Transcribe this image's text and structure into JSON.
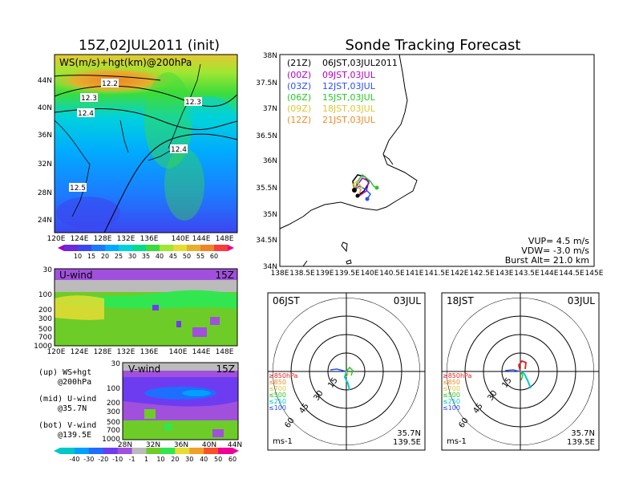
{
  "left_panel": {
    "title": "15Z,02JUL2011 (init)",
    "map_label": "WS(m/s)+hgt(km)@200hPa",
    "lat_ticks": [
      "44N",
      "40N",
      "36N",
      "32N",
      "28N",
      "24N"
    ],
    "lon_ticks": [
      "120E",
      "124E",
      "128E",
      "132E",
      "136E",
      "140E",
      "144E",
      "148E"
    ],
    "contour_labels": [
      "12.2",
      "12.3",
      "12.4",
      "12.3",
      "12.4",
      "12.5"
    ],
    "ws_colorbar": [
      "10",
      "15",
      "20",
      "25",
      "30",
      "35",
      "40",
      "45",
      "50",
      "55",
      "60"
    ],
    "ws_colors": [
      "#a000c8",
      "#6e28dc",
      "#3c46f0",
      "#1e78ff",
      "#00aaff",
      "#00d2dc",
      "#00dc8c",
      "#3cdc3c",
      "#a0e632",
      "#e6dc32",
      "#e6af2d",
      "#f08228",
      "#fa3c3c",
      "#f00082"
    ]
  },
  "u_panel": {
    "label": "U-wind",
    "time": "15Z",
    "p_ticks": [
      "30",
      "100",
      "200",
      "300",
      "500",
      "700",
      "1000"
    ],
    "lon_ticks": [
      "120E",
      "124E",
      "128E",
      "132E",
      "136E",
      "140E",
      "144E",
      "148E"
    ]
  },
  "v_panel": {
    "label": "V-wind",
    "time": "15Z",
    "p_ticks": [
      "30",
      "100",
      "200",
      "300",
      "500",
      "700",
      "1000"
    ],
    "lat_ticks": [
      "28N",
      "32N",
      "36N",
      "40N",
      "44N"
    ]
  },
  "legend_notes": [
    {
      "line1": "(up) WS+hgt",
      "line2": "@200hPa"
    },
    {
      "line1": "(mid) U-wind",
      "line2": "@35.7N"
    },
    {
      "line1": "(bot) V-wind",
      "line2": "@139.5E"
    }
  ],
  "uv_colorbar": {
    "labels": [
      "-40",
      "-30",
      "-20",
      "-10",
      "-1",
      "1",
      "10",
      "20",
      "30",
      "40",
      "50",
      "60"
    ],
    "colors": [
      "#00c8c8",
      "#00a0ff",
      "#1e6eff",
      "#6e3cf0",
      "#a050dc",
      "#bbbbbb",
      "#6ecc28",
      "#32e650",
      "#e6dc32",
      "#f0a028",
      "#fa5028",
      "#f00096"
    ]
  },
  "tracking": {
    "title": "Sonde Tracking Forecast",
    "launches": [
      {
        "utc": "(21Z)",
        "jst": "06JST,03JUL2011",
        "color": "#000000"
      },
      {
        "utc": "(00Z)",
        "jst": "09JST,03JUL",
        "color": "#b400c8"
      },
      {
        "utc": "(03Z)",
        "jst": "12JST,03JUL",
        "color": "#2850ff"
      },
      {
        "utc": "(06Z)",
        "jst": "15JST,03JUL",
        "color": "#28c828"
      },
      {
        "utc": "(09Z)",
        "jst": "18JST,03JUL",
        "color": "#dcc832"
      },
      {
        "utc": "(12Z)",
        "jst": "21JST,03JUL",
        "color": "#f08c28"
      }
    ],
    "lat_ticks": [
      "38N",
      "37.5N",
      "37N",
      "36.5N",
      "36N",
      "35.5N",
      "35N",
      "34.5N",
      "34N"
    ],
    "lon_ticks": [
      "138E",
      "138.5E",
      "139E",
      "139.5E",
      "140E",
      "140.5E",
      "141E",
      "141.5E",
      "142E",
      "142.5E",
      "143E",
      "143.5E",
      "144E",
      "144.5E",
      "145E"
    ],
    "vup": "VUP= 4.5 m/s",
    "vdw": "VDW= -3.0 m/s",
    "burst": "Burst Alt= 21.0 km"
  },
  "polar_left": {
    "time": "06JST",
    "date": "03JUL",
    "ring_labels": [
      "15",
      "30",
      "45",
      "60"
    ],
    "unit": "ms-1",
    "lat": "35.7N",
    "lon": "139.5E"
  },
  "polar_right": {
    "time": "18JST",
    "date": "03JUL",
    "ring_labels": [
      "15",
      "30",
      "45",
      "60"
    ],
    "unit": "ms-1",
    "lat": "35.7N",
    "lon": "139.5E"
  },
  "pressure_legend": [
    {
      "label": "≥850hPa",
      "color": "#e61e1e"
    },
    {
      "label": "≤850",
      "color": "#f08c28"
    },
    {
      "label": "≤700",
      "color": "#dcc832"
    },
    {
      "label": "≤500",
      "color": "#28c828"
    },
    {
      "label": "≤250",
      "color": "#00c8c8"
    },
    {
      "label": "≤100",
      "color": "#2850ff"
    }
  ]
}
